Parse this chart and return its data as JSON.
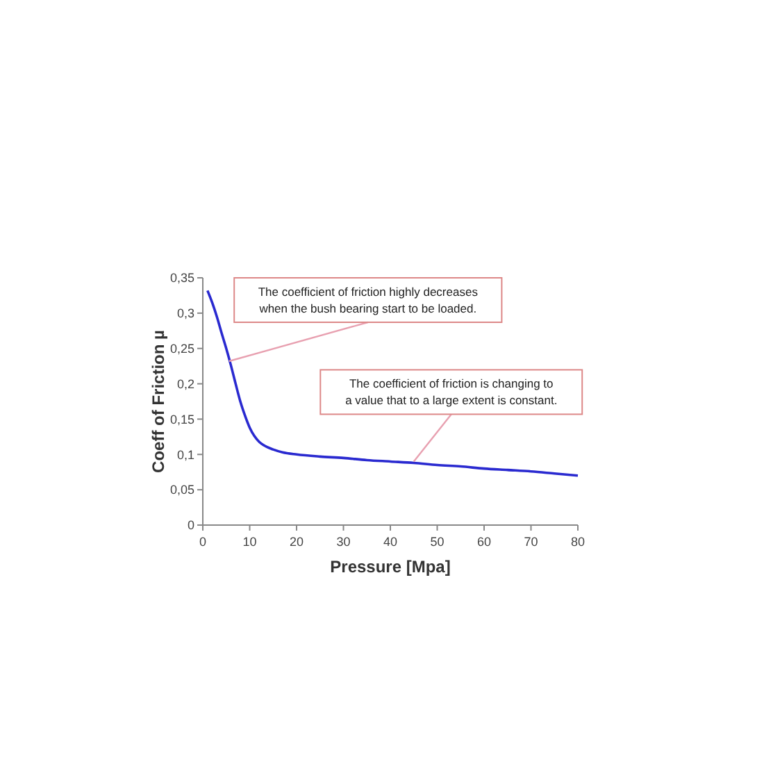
{
  "chart_data": {
    "type": "line",
    "xlabel": "Pressure [Mpa]",
    "ylabel": "Coeff of Friction µ",
    "x": [
      1,
      2,
      3,
      4,
      5,
      6,
      7,
      8,
      9,
      10,
      11,
      12,
      13,
      15,
      17,
      20,
      25,
      30,
      35,
      40,
      45,
      50,
      55,
      60,
      65,
      70,
      75,
      80
    ],
    "series": [
      {
        "color": "#2a2ad0",
        "values": [
          0.332,
          0.315,
          0.295,
          0.272,
          0.25,
          0.226,
          0.2,
          0.175,
          0.155,
          0.138,
          0.126,
          0.118,
          0.113,
          0.107,
          0.103,
          0.1,
          0.097,
          0.095,
          0.092,
          0.09,
          0.088,
          0.085,
          0.083,
          0.08,
          0.078,
          0.076,
          0.073,
          0.07
        ]
      }
    ],
    "xlim": [
      0,
      80
    ],
    "xticks": [
      0,
      10,
      20,
      30,
      40,
      50,
      60,
      70,
      80
    ],
    "ylim": [
      0,
      0.35
    ],
    "yticks": [
      0,
      {
        "value": 0.05,
        "label": "0,05"
      },
      {
        "value": 0.1,
        "label": "0,1"
      },
      {
        "value": 0.15,
        "label": "0,15"
      },
      {
        "value": 0.2,
        "label": "0,2"
      },
      {
        "value": 0.25,
        "label": "0,25"
      },
      {
        "value": 0.3,
        "label": "0,3"
      },
      {
        "value": 0.35,
        "label": "0,35"
      }
    ],
    "grid": false,
    "marker": "none",
    "line_style": "solid",
    "annotations": [
      {
        "text": "The coefficient of friction highly decreases\nwhen the bush bearing start to be loaded.",
        "x": 5.6,
        "y": 0.232
      },
      {
        "text": "The coefficient of friction is changing to\na value that to a large extent is constant.",
        "x": 45,
        "y": 0.09
      }
    ]
  }
}
